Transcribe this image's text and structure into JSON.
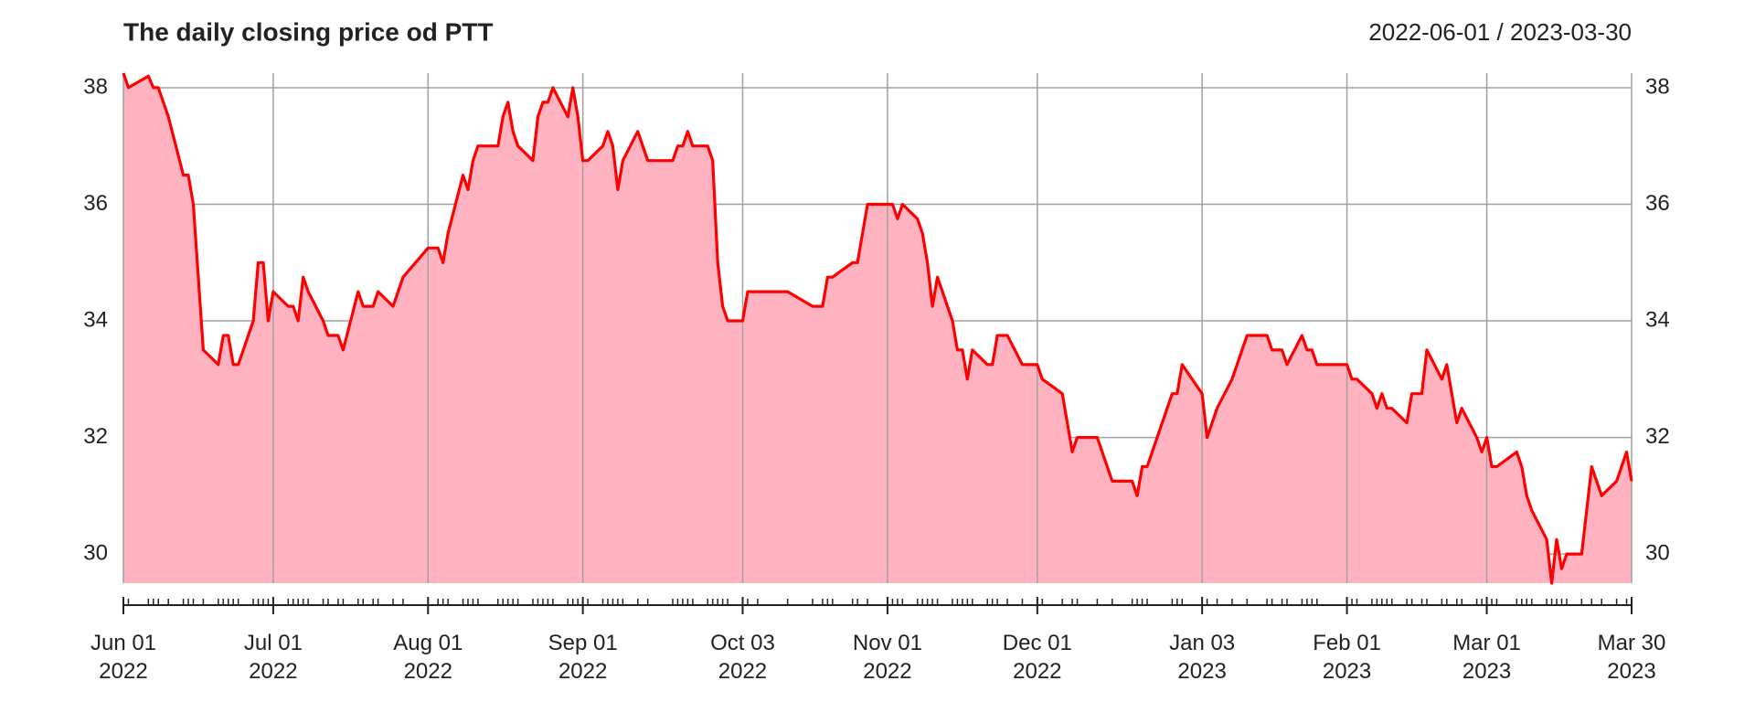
{
  "chart_data": {
    "type": "area",
    "title": "The daily closing price od PTT",
    "subtitle": "2022-06-01 / 2023-03-30",
    "color": "#ff0000",
    "fill_color": "#ffb3c1",
    "grid": true,
    "x": [
      "2022-06-01",
      "2022-06-02",
      "2022-06-06",
      "2022-06-07",
      "2022-06-08",
      "2022-06-10",
      "2022-06-13",
      "2022-06-14",
      "2022-06-15",
      "2022-06-17",
      "2022-06-20",
      "2022-06-21",
      "2022-06-22",
      "2022-06-23",
      "2022-06-24",
      "2022-06-27",
      "2022-06-28",
      "2022-06-29",
      "2022-06-30",
      "2022-07-01",
      "2022-07-04",
      "2022-07-05",
      "2022-07-06",
      "2022-07-07",
      "2022-07-08",
      "2022-07-11",
      "2022-07-12",
      "2022-07-14",
      "2022-07-15",
      "2022-07-18",
      "2022-07-19",
      "2022-07-21",
      "2022-07-22",
      "2022-07-25",
      "2022-07-27",
      "2022-08-01",
      "2022-08-03",
      "2022-08-04",
      "2022-08-05",
      "2022-08-08",
      "2022-08-09",
      "2022-08-10",
      "2022-08-11",
      "2022-08-15",
      "2022-08-16",
      "2022-08-17",
      "2022-08-18",
      "2022-08-19",
      "2022-08-22",
      "2022-08-23",
      "2022-08-24",
      "2022-08-25",
      "2022-08-26",
      "2022-08-29",
      "2022-08-30",
      "2022-08-31",
      "2022-09-01",
      "2022-09-02",
      "2022-09-05",
      "2022-09-06",
      "2022-09-07",
      "2022-09-08",
      "2022-09-09",
      "2022-09-12",
      "2022-09-14",
      "2022-09-19",
      "2022-09-20",
      "2022-09-21",
      "2022-09-22",
      "2022-09-23",
      "2022-09-26",
      "2022-09-27",
      "2022-09-28",
      "2022-09-29",
      "2022-09-30",
      "2022-10-03",
      "2022-10-04",
      "2022-10-06",
      "2022-10-12",
      "2022-10-17",
      "2022-10-19",
      "2022-10-20",
      "2022-10-21",
      "2022-10-25",
      "2022-10-26",
      "2022-10-28",
      "2022-11-02",
      "2022-11-03",
      "2022-11-04",
      "2022-11-07",
      "2022-11-08",
      "2022-11-09",
      "2022-11-10",
      "2022-11-11",
      "2022-11-14",
      "2022-11-15",
      "2022-11-16",
      "2022-11-17",
      "2022-11-18",
      "2022-11-21",
      "2022-11-22",
      "2022-11-23",
      "2022-11-25",
      "2022-11-28",
      "2022-12-01",
      "2022-12-02",
      "2022-12-06",
      "2022-12-08",
      "2022-12-09",
      "2022-12-13",
      "2022-12-16",
      "2022-12-20",
      "2022-12-21",
      "2022-12-22",
      "2022-12-23",
      "2022-12-28",
      "2022-12-29",
      "2022-12-30",
      "2023-01-03",
      "2023-01-04",
      "2023-01-06",
      "2023-01-09",
      "2023-01-12",
      "2023-01-16",
      "2023-01-17",
      "2023-01-19",
      "2023-01-20",
      "2023-01-23",
      "2023-01-24",
      "2023-01-25",
      "2023-01-26",
      "2023-02-01",
      "2023-02-02",
      "2023-02-03",
      "2023-02-06",
      "2023-02-07",
      "2023-02-08",
      "2023-02-09",
      "2023-02-10",
      "2023-02-13",
      "2023-02-14",
      "2023-02-16",
      "2023-02-17",
      "2023-02-20",
      "2023-02-21",
      "2023-02-23",
      "2023-02-24",
      "2023-02-27",
      "2023-02-28",
      "2023-03-01",
      "2023-03-02",
      "2023-03-03",
      "2023-03-07",
      "2023-03-08",
      "2023-03-09",
      "2023-03-10",
      "2023-03-13",
      "2023-03-14",
      "2023-03-15",
      "2023-03-16",
      "2023-03-17",
      "2023-03-20",
      "2023-03-22",
      "2023-03-24",
      "2023-03-27",
      "2023-03-29",
      "2023-03-30"
    ],
    "values": [
      38.25,
      38,
      38.2,
      38,
      38,
      37.5,
      36.5,
      36.5,
      36,
      33.5,
      33.25,
      33.75,
      33.75,
      33.25,
      33.25,
      34,
      35,
      35,
      34,
      34.5,
      34.25,
      34.25,
      34,
      34.75,
      34.5,
      34,
      33.75,
      33.75,
      33.5,
      34.5,
      34.25,
      34.25,
      34.5,
      34.25,
      34.75,
      35.25,
      35.25,
      35,
      35.5,
      36.5,
      36.25,
      36.75,
      37,
      37,
      37.5,
      37.75,
      37.25,
      37,
      36.75,
      37.5,
      37.75,
      37.75,
      38,
      37.5,
      38,
      37.5,
      36.75,
      36.75,
      37,
      37.25,
      37,
      36.25,
      36.75,
      37.25,
      36.75,
      36.75,
      37,
      37,
      37.25,
      37,
      37,
      36.75,
      35,
      34.25,
      34,
      34,
      34.5,
      34.5,
      34.5,
      34.25,
      34.25,
      34.75,
      34.75,
      35,
      35,
      36,
      36,
      35.75,
      36,
      35.75,
      35.5,
      35,
      34.25,
      34.75,
      34,
      33.5,
      33.5,
      33,
      33.5,
      33.25,
      33.25,
      33.75,
      33.75,
      33.25,
      33.25,
      33,
      32.75,
      31.75,
      32,
      32,
      31.25,
      31.25,
      31,
      31.5,
      31.5,
      32.75,
      32.75,
      33.25,
      32.75,
      32,
      32.5,
      33,
      33.75,
      33.75,
      33.5,
      33.5,
      33.25,
      33.75,
      33.5,
      33.5,
      33.25,
      33.25,
      33,
      33,
      32.75,
      32.5,
      32.75,
      32.5,
      32.5,
      32.25,
      32.75,
      32.75,
      33.5,
      33,
      33.25,
      32.25,
      32.5,
      32,
      31.75,
      32,
      31.5,
      31.5,
      31.75,
      31.5,
      31,
      30.75,
      30.25,
      29.5,
      30.25,
      29.75,
      30,
      30,
      31.5,
      31,
      31.25,
      31.75,
      31.25
    ],
    "xlim": [
      "2022-06-01",
      "2023-03-30"
    ],
    "xticks": [
      {
        "value": "2022-06-01",
        "label": "Jun 01\n2022"
      },
      {
        "value": "2022-07-01",
        "label": "Jul 01\n2022"
      },
      {
        "value": "2022-08-01",
        "label": "Aug 01\n2022"
      },
      {
        "value": "2022-09-01",
        "label": "Sep 01\n2022"
      },
      {
        "value": "2022-10-03",
        "label": "Oct 03\n2022"
      },
      {
        "value": "2022-11-01",
        "label": "Nov 01\n2022"
      },
      {
        "value": "2022-12-01",
        "label": "Dec 01\n2022"
      },
      {
        "value": "2023-01-03",
        "label": "Jan 03\n2023"
      },
      {
        "value": "2023-02-01",
        "label": "Feb 01\n2023"
      },
      {
        "value": "2023-03-01",
        "label": "Mar 01\n2023"
      },
      {
        "value": "2023-03-30",
        "label": "Mar 30\n2023"
      }
    ],
    "ylim": [
      29.5,
      38.25
    ],
    "yticks": [
      30,
      32,
      34,
      36,
      38
    ]
  }
}
